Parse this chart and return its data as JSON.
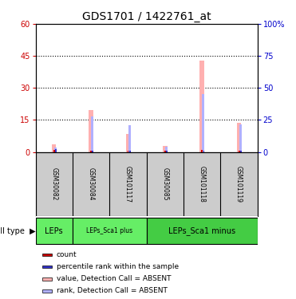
{
  "title": "GDS1701 / 1422761_at",
  "samples": [
    "GSM30082",
    "GSM30084",
    "GSM101117",
    "GSM30085",
    "GSM101118",
    "GSM101119"
  ],
  "left_ylim": [
    0,
    60
  ],
  "right_ylim": [
    0,
    100
  ],
  "left_yticks": [
    0,
    15,
    30,
    45,
    60
  ],
  "right_yticks": [
    0,
    25,
    50,
    75,
    100
  ],
  "right_yticklabels": [
    "0",
    "25",
    "50",
    "75",
    "100%"
  ],
  "pink_values": [
    3.5,
    19.5,
    8.5,
    3.0,
    43.0,
    13.5
  ],
  "blue_values": [
    2.0,
    16.5,
    12.5,
    2.5,
    27.0,
    13.0
  ],
  "red_values": [
    0.8,
    0.5,
    0.5,
    0.5,
    0.8,
    0.5
  ],
  "dark_blue_values": [
    1.2,
    0.6,
    0.6,
    0.6,
    0.6,
    0.6
  ],
  "pink_bar_width": 0.12,
  "blue_bar_width": 0.06,
  "red_bar_width": 0.04,
  "cell_types": [
    {
      "label": "LEPs",
      "span": [
        0,
        1
      ],
      "color": "#66ee66"
    },
    {
      "label": "LEPs_Sca1 plus",
      "span": [
        1,
        3
      ],
      "color": "#66ee66"
    },
    {
      "label": "LEPs_Sca1 minus",
      "span": [
        3,
        6
      ],
      "color": "#44cc44"
    }
  ],
  "legend_items": [
    {
      "color": "#cc0000",
      "label": "count"
    },
    {
      "color": "#3333cc",
      "label": "percentile rank within the sample"
    },
    {
      "color": "#ffb0b0",
      "label": "value, Detection Call = ABSENT"
    },
    {
      "color": "#b0b0ff",
      "label": "rank, Detection Call = ABSENT"
    }
  ],
  "title_fontsize": 10,
  "tick_fontsize": 7,
  "background_color": "#ffffff",
  "left_tick_color": "#cc0000",
  "right_tick_color": "#0000cc",
  "sample_bg": "#cccccc",
  "dotted_lines": [
    15,
    30,
    45
  ]
}
